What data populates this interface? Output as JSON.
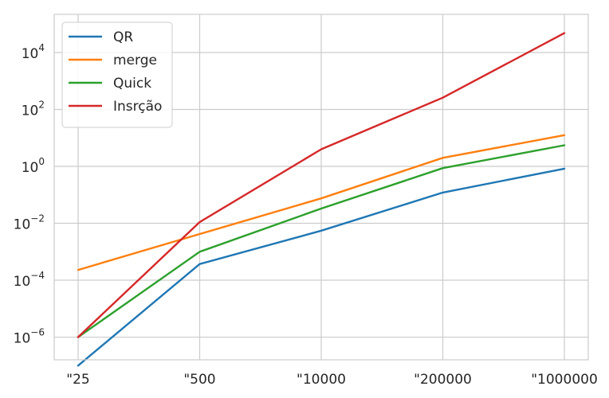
{
  "chart_data": {
    "type": "line",
    "title": "",
    "xlabel": "",
    "ylabel": "",
    "categories": [
      "\"25",
      "\"500",
      "\"10000",
      "\"200000",
      "\"1000000"
    ],
    "y_scale": "log",
    "ylim": [
      1.6e-07,
      220000.0
    ],
    "yticks": [
      {
        "base": "10",
        "exp": "−6",
        "value": 1e-06
      },
      {
        "base": "10",
        "exp": "−4",
        "value": 0.0001
      },
      {
        "base": "10",
        "exp": "−2",
        "value": 0.01
      },
      {
        "base": "10",
        "exp": "0",
        "value": 1
      },
      {
        "base": "10",
        "exp": "2",
        "value": 100
      },
      {
        "base": "10",
        "exp": "4",
        "value": 10000
      }
    ],
    "grid": true,
    "legend_position": "top-left",
    "series": [
      {
        "name": "QR",
        "color": "#1f77b4",
        "values": [
          1e-07,
          0.00037,
          0.0055,
          0.12,
          0.83
        ]
      },
      {
        "name": "merge",
        "color": "#ff7f0e",
        "values": [
          0.00023,
          0.0042,
          0.075,
          2.0,
          12.5
        ]
      },
      {
        "name": "Quick",
        "color": "#2ca02c",
        "values": [
          1e-06,
          0.001,
          0.033,
          0.87,
          5.5
        ]
      },
      {
        "name": "Insrção",
        "color": "#d62728",
        "values": [
          1e-06,
          0.011,
          4.0,
          260,
          48000
        ]
      }
    ]
  }
}
